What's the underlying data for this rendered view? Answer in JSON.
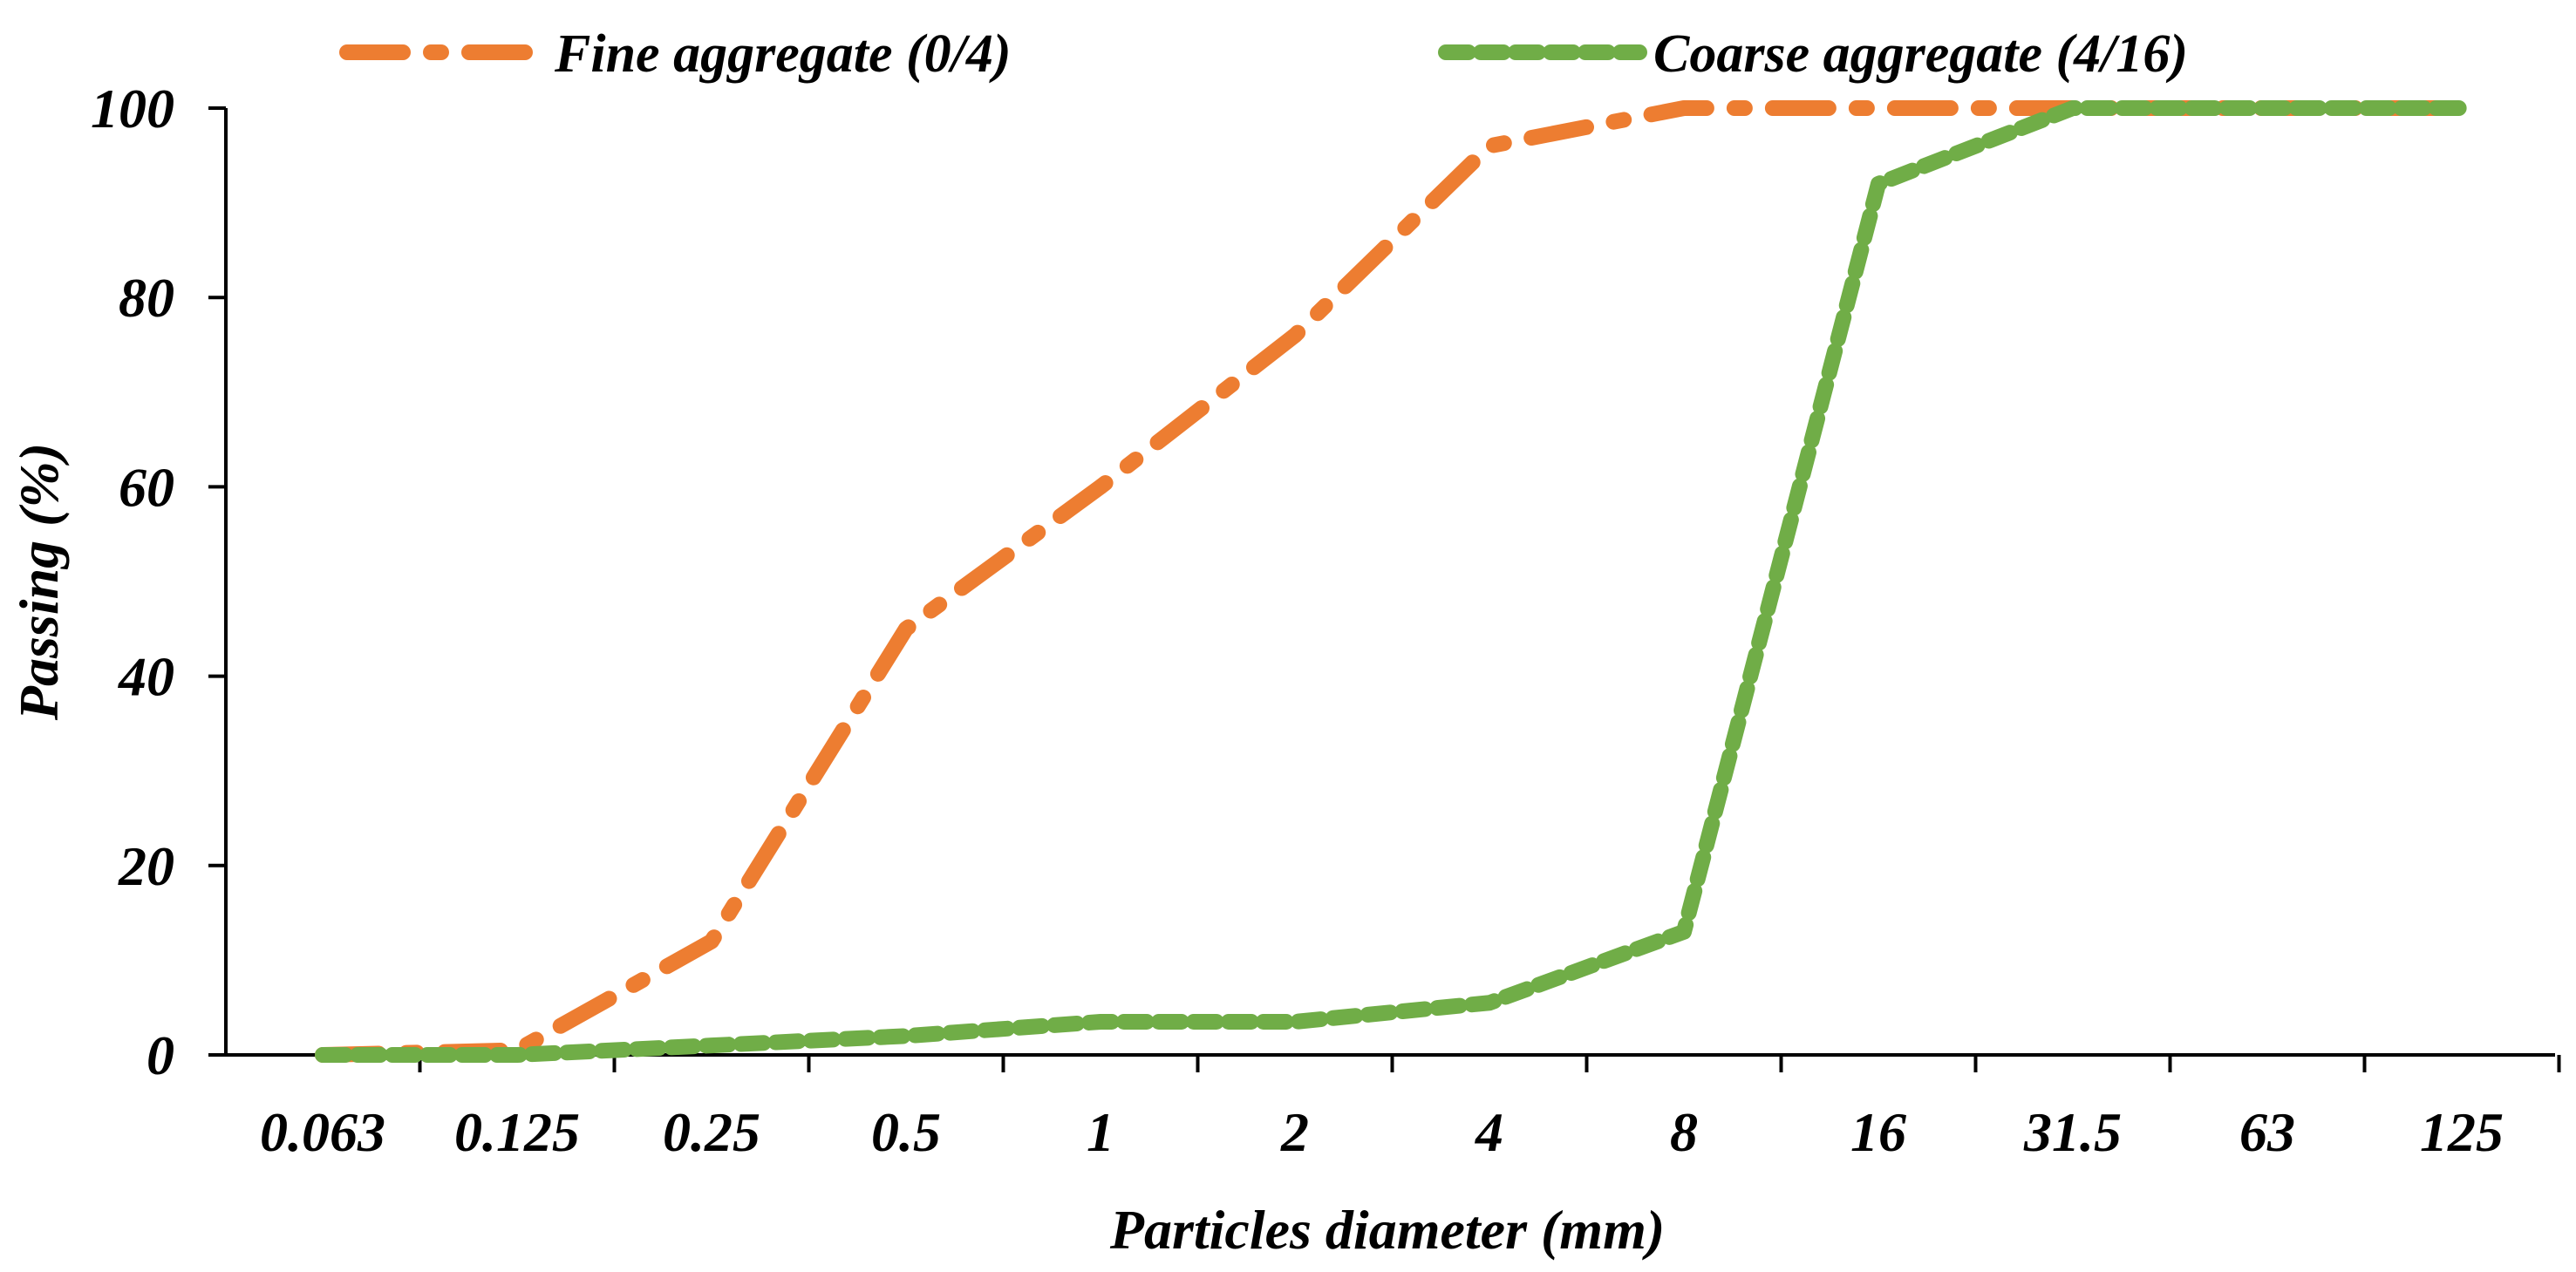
{
  "chart_data": {
    "type": "line",
    "title": "",
    "xlabel": "Particles diameter (mm)",
    "ylabel": "Passing (%)",
    "x_scale": "categorical-log",
    "categories": [
      "0.063",
      "0.125",
      "0.25",
      "0.5",
      "1",
      "2",
      "4",
      "8",
      "16",
      "31.5",
      "63",
      "125"
    ],
    "yticks": [
      "0",
      "20",
      "40",
      "60",
      "80",
      "100"
    ],
    "ylim": [
      0,
      100
    ],
    "grid": false,
    "legend_position": "top",
    "series": [
      {
        "name": "Fine aggregate (0/4)",
        "color": "#ED7D31",
        "dash": "long-dash-dot",
        "values": [
          0,
          0.5,
          12,
          45,
          60,
          76,
          96,
          100,
          100,
          100,
          100,
          100
        ]
      },
      {
        "name": "Coarse aggregate (4/16)",
        "color": "#70AD47",
        "dash": "short-dash",
        "values": [
          0,
          0,
          1,
          2,
          3.5,
          3.5,
          5.5,
          13,
          92,
          100,
          100,
          100
        ]
      }
    ]
  }
}
